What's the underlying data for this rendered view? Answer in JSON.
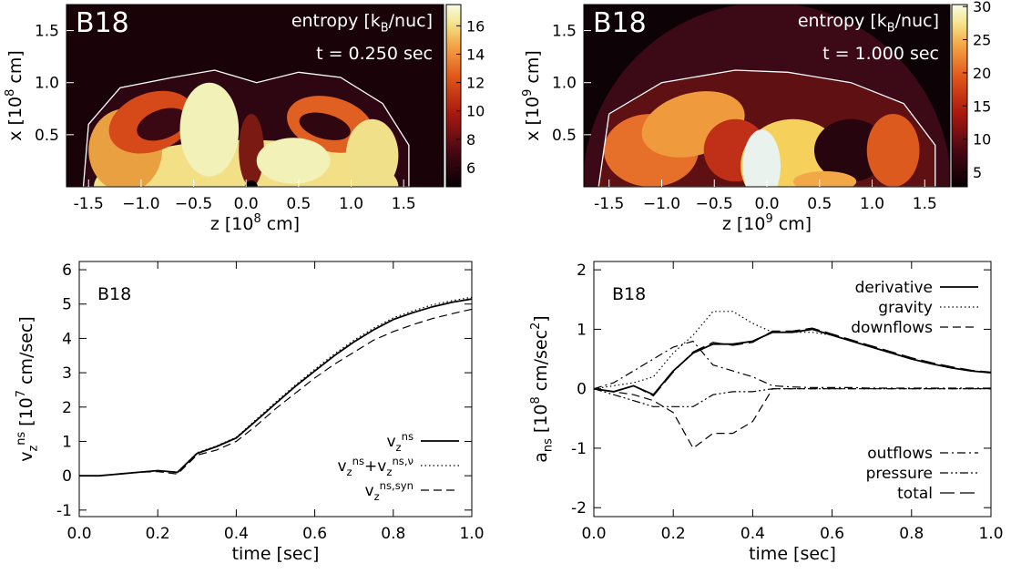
{
  "chart_data": [
    {
      "type": "heatmap",
      "title": "B18",
      "subtitle": "entropy [k_{B}/nuc]",
      "annotation": "t = 0.250 sec",
      "xlabel": "z [10^{8} cm]",
      "ylabel": "x [10^{8} cm]",
      "xlim": [
        -1.71,
        1.88
      ],
      "ylim": [
        0,
        1.75
      ],
      "xticks": [
        -1.5,
        {
          "value": -1,
          "label": "−1.0"
        },
        {
          "value": -0.5,
          "label": "−0.5"
        },
        {
          "value": 0,
          "label": "0.0"
        },
        0.5,
        {
          "value": 1,
          "label": "1.0"
        },
        1.5
      ],
      "yticks": [
        0.5,
        {
          "value": 1,
          "label": "1.0"
        },
        1.5
      ],
      "colorbar": {
        "lim": [
          4.65,
          17.5
        ],
        "ticks": [
          6,
          8,
          10,
          12,
          14,
          16
        ]
      }
    },
    {
      "type": "heatmap",
      "title": "B18",
      "subtitle": "entropy [k_{B}/nuc]",
      "annotation": "t = 1.000 sec",
      "xlabel": "z [10^{9} cm]",
      "ylabel": "x [10^{9} cm]",
      "xlim": [
        -1.74,
        1.74
      ],
      "ylim": [
        0,
        1.75
      ],
      "xticks": [
        -1.5,
        {
          "value": -1,
          "label": "−1.0"
        },
        {
          "value": -0.5,
          "label": "−0.5"
        },
        {
          "value": 0,
          "label": "0.0"
        },
        0.5,
        {
          "value": 1,
          "label": "1.0"
        },
        1.5
      ],
      "yticks": [
        0.5,
        {
          "value": 1,
          "label": "1.0"
        },
        1.5
      ],
      "colorbar": {
        "lim": [
          2.8,
          30.3
        ],
        "ticks": [
          5,
          10,
          15,
          20,
          25,
          30
        ]
      }
    },
    {
      "type": "line",
      "title": "B18",
      "xlabel": "time [sec]",
      "ylabel": "v_{z}^{ns} [10^{7} cm/sec]",
      "xlim": [
        0,
        1
      ],
      "ylim": [
        -1.19,
        6.24
      ],
      "xticks": [
        {
          "value": 0,
          "label": "0.0"
        },
        0.2,
        0.4,
        0.6,
        0.8,
        {
          "value": 1,
          "label": "1.0"
        }
      ],
      "yticks": [
        -1,
        0,
        1,
        2,
        3,
        4,
        5,
        6
      ],
      "x": [
        0,
        0.05,
        0.1,
        0.15,
        0.2,
        0.25,
        0.3,
        0.35,
        0.4,
        0.45,
        0.5,
        0.55,
        0.6,
        0.65,
        0.7,
        0.75,
        0.8,
        0.85,
        0.9,
        0.95,
        1
      ],
      "series": [
        {
          "name": "v_{z}^{ns}",
          "color": "#000000",
          "dash": "solid",
          "values": [
            0,
            0,
            0.05,
            0.1,
            0.15,
            0.1,
            0.65,
            0.85,
            1.1,
            1.6,
            2.1,
            2.6,
            3.05,
            3.5,
            3.9,
            4.25,
            4.55,
            4.75,
            4.92,
            5.05,
            5.15
          ]
        },
        {
          "name": "v_{z}^{ns}+v_{z}^{ns,ν}",
          "color": "#000000",
          "dash": "dotted",
          "values": [
            0,
            0,
            0.05,
            0.1,
            0.15,
            0.1,
            0.67,
            0.87,
            1.12,
            1.63,
            2.14,
            2.64,
            3.1,
            3.55,
            3.95,
            4.3,
            4.6,
            4.8,
            4.98,
            5.1,
            5.2
          ]
        },
        {
          "name": "v_{z}^{ns,syn}",
          "color": "#000000",
          "dash": "dashed",
          "values": [
            0,
            0,
            0.05,
            0.1,
            0.12,
            0.05,
            0.6,
            0.75,
            1.0,
            1.45,
            1.95,
            2.4,
            2.85,
            3.25,
            3.6,
            3.95,
            4.2,
            4.4,
            4.58,
            4.72,
            4.85
          ]
        }
      ]
    },
    {
      "type": "line",
      "title": "B18",
      "xlabel": "time [sec]",
      "ylabel": "a_{ns} [10^{8} cm/sec^{2}]",
      "xlim": [
        0,
        1
      ],
      "ylim": [
        -2.15,
        2.14
      ],
      "xticks": [
        {
          "value": 0,
          "label": "0.0"
        },
        0.2,
        0.4,
        0.6,
        0.8,
        {
          "value": 1,
          "label": "1.0"
        }
      ],
      "yticks": [
        -2,
        -1,
        0,
        1,
        2
      ],
      "x": [
        0,
        0.05,
        0.1,
        0.15,
        0.2,
        0.25,
        0.3,
        0.35,
        0.4,
        0.45,
        0.5,
        0.55,
        0.6,
        0.65,
        0.7,
        0.75,
        0.8,
        0.85,
        0.9,
        0.95,
        1
      ],
      "series": [
        {
          "name": "derivative",
          "color": "#000000",
          "dash": "solid",
          "values": [
            0,
            -0.05,
            0.05,
            -0.1,
            0.3,
            0.6,
            0.75,
            0.75,
            0.8,
            0.95,
            0.95,
            1.0,
            0.9,
            0.8,
            0.7,
            0.6,
            0.5,
            0.42,
            0.35,
            0.3,
            0.27
          ]
        },
        {
          "name": "gravity",
          "color": "#000000",
          "dash": "dotted",
          "values": [
            0,
            0.05,
            0.1,
            0.2,
            0.6,
            0.9,
            1.3,
            1.3,
            1.1,
            0.95,
            0.95,
            0.95,
            0.9,
            0.8,
            0.7,
            0.6,
            0.5,
            0.42,
            0.35,
            0.3,
            0.27
          ]
        },
        {
          "name": "downflows",
          "color": "#000000",
          "dash": "dashed",
          "values": [
            0,
            -0.05,
            -0.1,
            -0.2,
            -0.4,
            -1.0,
            -0.75,
            -0.75,
            -0.55,
            0,
            0,
            0,
            0,
            0,
            0,
            0,
            0,
            0,
            0,
            0,
            0
          ]
        },
        {
          "name": "outflows",
          "color": "#000000",
          "dash": "dashdot",
          "values": [
            0,
            0.1,
            0.3,
            0.5,
            0.7,
            0.8,
            0.4,
            0.3,
            0.2,
            0.05,
            0.03,
            0.02,
            0.02,
            0.02,
            0.01,
            0.01,
            0.01,
            0.01,
            0.01,
            0.01,
            0.01
          ]
        },
        {
          "name": "pressure",
          "color": "#000000",
          "dash": "dashdotdot",
          "values": [
            0,
            -0.1,
            -0.2,
            -0.3,
            -0.3,
            -0.3,
            -0.1,
            -0.05,
            -0.05,
            0,
            0,
            0,
            0,
            0,
            0,
            0,
            0,
            0,
            0,
            0,
            0
          ]
        },
        {
          "name": "total",
          "color": "#000000",
          "dash": "longdash",
          "values": [
            0,
            -0.05,
            0.05,
            -0.12,
            0.28,
            0.62,
            0.78,
            0.73,
            0.78,
            0.97,
            0.97,
            1.02,
            0.92,
            0.82,
            0.72,
            0.62,
            0.52,
            0.44,
            0.37,
            0.31,
            0.28
          ]
        }
      ]
    }
  ]
}
